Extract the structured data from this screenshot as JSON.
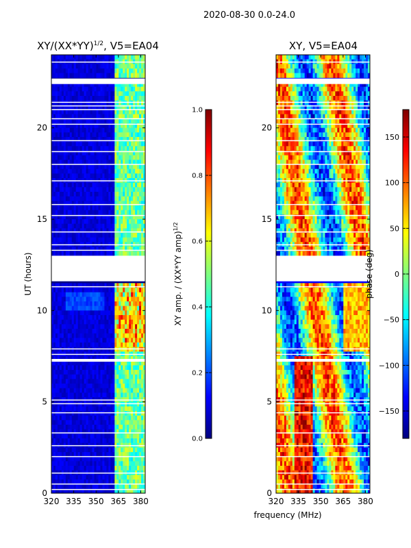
{
  "suptitle": "2020-08-30 0.0-24.0",
  "xlabel": "frequency (MHz)",
  "colors": {
    "ink": "#000000",
    "gap": "#ffffff",
    "jet": [
      "#00007f",
      "#0000ff",
      "#007fff",
      "#00ffff",
      "#7fff7f",
      "#ffff00",
      "#ff7f00",
      "#ff0000",
      "#7f0000"
    ]
  },
  "chart_data": [
    {
      "type": "heatmap",
      "title_main": "XY/(XX*YY)",
      "title_sup": "1/2",
      "title_rest": ", V5=EA04",
      "xlabel": "",
      "ylabel": "UT (hours)",
      "xlim": [
        320,
        383
      ],
      "ylim": [
        0,
        24
      ],
      "xticks": [
        320,
        335,
        350,
        365,
        380
      ],
      "yticks": [
        0,
        5,
        10,
        15,
        20
      ],
      "colorbar": {
        "label_main": "XY amp. / (XX*YY amp)",
        "label_sup": "1/2",
        "range": [
          0.0,
          1.0
        ],
        "ticks": [
          "0.0",
          "0.2",
          "0.4",
          "0.6",
          "0.8",
          "1.0"
        ]
      },
      "value_range": [
        0.0,
        1.0
      ],
      "strong_band_mhz": [
        363,
        383
      ],
      "data_gaps_ut_hours": [
        [
          11.6,
          13.0
        ],
        [
          22.4,
          22.7
        ],
        [
          7.2,
          7.35
        ]
      ],
      "flag_lines_ut_hours": [
        0.2,
        0.5,
        1.1,
        2.0,
        2.6,
        3.3,
        4.4,
        4.9,
        5.1,
        7.6,
        7.9,
        11.3,
        13.3,
        13.6,
        14.3,
        15.2,
        15.8,
        17.1,
        18.0,
        18.7,
        19.3,
        20.2,
        20.5,
        21.0,
        21.2,
        21.4,
        23.6
      ]
    },
    {
      "type": "heatmap",
      "title_main": "XY, V5=EA04",
      "xlabel": "",
      "ylabel": "",
      "xlim": [
        320,
        383
      ],
      "ylim": [
        0,
        24
      ],
      "xticks": [
        320,
        335,
        350,
        365,
        380
      ],
      "yticks": [
        0,
        5,
        10,
        15,
        20
      ],
      "colorbar": {
        "label": "phase (deg)",
        "range": [
          -180,
          180
        ],
        "ticks": [
          "−150",
          "−100",
          "−50",
          "0",
          "50",
          "100",
          "150"
        ],
        "tick_values": [
          -150,
          -100,
          -50,
          0,
          50,
          100,
          150
        ]
      },
      "value_range": [
        -180,
        180
      ],
      "data_gaps_ut_hours": [
        [
          11.6,
          13.0
        ],
        [
          22.4,
          22.7
        ],
        [
          7.2,
          7.35
        ]
      ],
      "flag_lines_ut_hours": [
        0.2,
        0.5,
        1.1,
        2.0,
        2.6,
        3.3,
        4.4,
        4.9,
        5.1,
        7.6,
        7.9,
        11.3,
        13.3,
        13.6,
        14.3,
        15.2,
        15.8,
        17.1,
        18.0,
        18.7,
        19.3,
        20.2,
        20.5,
        21.0,
        21.2,
        21.4,
        23.6
      ]
    }
  ]
}
